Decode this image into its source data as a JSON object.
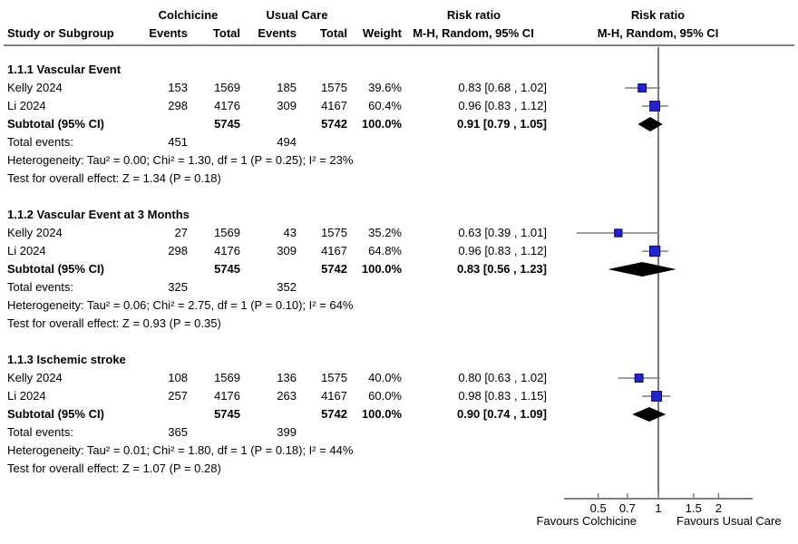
{
  "header": {
    "group1": "Colchicine",
    "group2": "Usual Care",
    "risk_ratio": "Risk ratio",
    "method": "M-H, Random, 95% CI",
    "col_study": "Study or Subgroup",
    "col_events": "Events",
    "col_total": "Total",
    "col_weight": "Weight"
  },
  "colors": {
    "square_fill": "#2424cc",
    "square_border": "#00008b",
    "diamond_fill": "#000000",
    "ci_line": "#7f7f7f",
    "axis_line": "#808080",
    "no_effect_line": "#333333",
    "rule": "#808080",
    "text": "#000000"
  },
  "chart_data": {
    "type": "forest",
    "effect_measure": "Risk ratio",
    "method": "M-H, Random, 95% CI",
    "scale": "log",
    "axis": {
      "ticks": [
        0.5,
        0.7,
        1,
        1.5,
        2
      ],
      "range": [
        0.34,
        3.0
      ],
      "left_label": "Favours Colchicine",
      "right_label": "Favours Usual Care"
    },
    "groups": [
      {
        "name": "1.1.1 Vascular Event",
        "studies": [
          {
            "study": "Kelly 2024",
            "events1": "153",
            "total1": "1569",
            "events2": "185",
            "total2": "1575",
            "weight": "39.6%",
            "weight_pct": 39.6,
            "ci_text": "0.83 [0.68 , 1.02]",
            "rr": 0.83,
            "low": 0.68,
            "high": 1.02
          },
          {
            "study": "Li 2024",
            "events1": "298",
            "total1": "4176",
            "events2": "309",
            "total2": "4167",
            "weight": "60.4%",
            "weight_pct": 60.4,
            "ci_text": "0.96 [0.83 , 1.12]",
            "rr": 0.96,
            "low": 0.83,
            "high": 1.12
          }
        ],
        "subtotal": {
          "label": "Subtotal (95% CI)",
          "total1": "5745",
          "total2": "5742",
          "weight": "100.0%",
          "ci_text": "0.91 [0.79 , 1.05]",
          "rr": 0.91,
          "low": 0.79,
          "high": 1.05
        },
        "total_events": {
          "label": "Total events:",
          "v1": "451",
          "v2": "494"
        },
        "heterogeneity": "Heterogeneity: Tau² = 0.00; Chi² = 1.30, df = 1 (P = 0.25); I² = 23%",
        "overall_effect": "Test for overall effect: Z = 1.34 (P = 0.18)"
      },
      {
        "name": "1.1.2 Vascular Event at 3 Months",
        "studies": [
          {
            "study": "Kelly 2024",
            "events1": "27",
            "total1": "1569",
            "events2": "43",
            "total2": "1575",
            "weight": "35.2%",
            "weight_pct": 35.2,
            "ci_text": "0.63 [0.39 , 1.01]",
            "rr": 0.63,
            "low": 0.39,
            "high": 1.01
          },
          {
            "study": "Li 2024",
            "events1": "298",
            "total1": "4176",
            "events2": "309",
            "total2": "4167",
            "weight": "64.8%",
            "weight_pct": 64.8,
            "ci_text": "0.96 [0.83 , 1.12]",
            "rr": 0.96,
            "low": 0.83,
            "high": 1.12
          }
        ],
        "subtotal": {
          "label": "Subtotal (95% CI)",
          "total1": "5745",
          "total2": "5742",
          "weight": "100.0%",
          "ci_text": "0.83 [0.56 , 1.23]",
          "rr": 0.83,
          "low": 0.56,
          "high": 1.23
        },
        "total_events": {
          "label": "Total events:",
          "v1": "325",
          "v2": "352"
        },
        "heterogeneity": "Heterogeneity: Tau² = 0.06; Chi² = 2.75, df = 1 (P = 0.10); I² = 64%",
        "overall_effect": "Test for overall effect: Z = 0.93 (P = 0.35)"
      },
      {
        "name": "1.1.3 Ischemic stroke",
        "studies": [
          {
            "study": "Kelly 2024",
            "events1": "108",
            "total1": "1569",
            "events2": "136",
            "total2": "1575",
            "weight": "40.0%",
            "weight_pct": 40.0,
            "ci_text": "0.80 [0.63 , 1.02]",
            "rr": 0.8,
            "low": 0.63,
            "high": 1.02
          },
          {
            "study": "Li 2024",
            "events1": "257",
            "total1": "4176",
            "events2": "263",
            "total2": "4167",
            "weight": "60.0%",
            "weight_pct": 60.0,
            "ci_text": "0.98 [0.83 , 1.15]",
            "rr": 0.98,
            "low": 0.83,
            "high": 1.15
          }
        ],
        "subtotal": {
          "label": "Subtotal (95% CI)",
          "total1": "5745",
          "total2": "5742",
          "weight": "100.0%",
          "ci_text": "0.90 [0.74 , 1.09]",
          "rr": 0.9,
          "low": 0.74,
          "high": 1.09
        },
        "total_events": {
          "label": "Total events:",
          "v1": "365",
          "v2": "399"
        },
        "heterogeneity": "Heterogeneity: Tau² = 0.01; Chi² = 1.80, df = 1 (P = 0.18); I² = 44%",
        "overall_effect": "Test for overall effect: Z = 1.07 (P = 0.28)"
      }
    ]
  }
}
